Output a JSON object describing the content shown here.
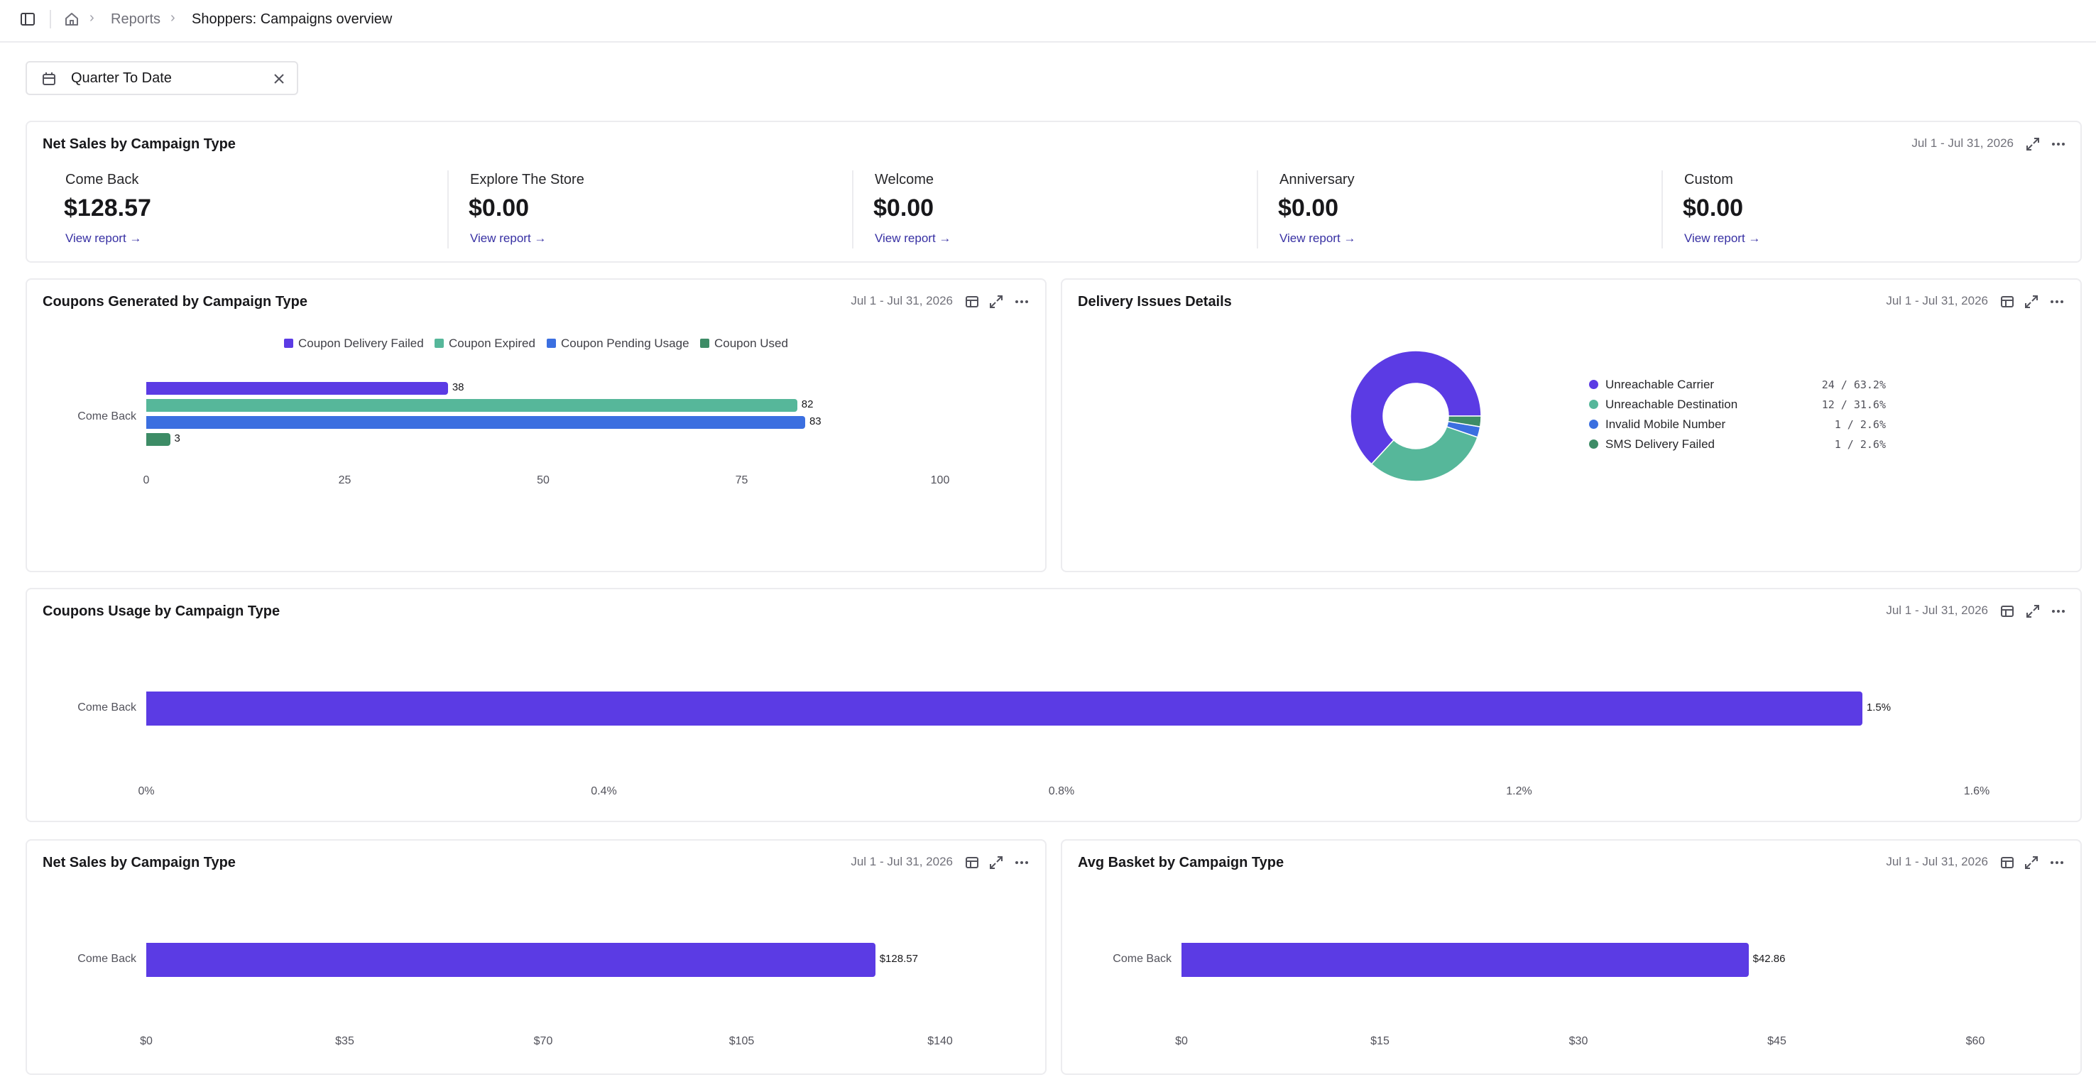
{
  "breadcrumb": {
    "section": "Reports",
    "current": "Shoppers: Campaigns overview"
  },
  "filter": {
    "value": "Quarter To Date"
  },
  "colors": {
    "purple": "#5b3be4",
    "teal": "#56b79a",
    "blue": "#3b6fe0",
    "green": "#3d8c66",
    "link": "#3730a3"
  },
  "net_sales_kpis": {
    "title": "Net Sales by Campaign Type",
    "date": "Jul 1 - Jul 31, 2026",
    "items": [
      {
        "label": "Come Back",
        "value": "$128.57",
        "link": "View report →"
      },
      {
        "label": "Explore The Store",
        "value": "$0.00",
        "link": "View report →"
      },
      {
        "label": "Welcome",
        "value": "$0.00",
        "link": "View report →"
      },
      {
        "label": "Anniversary",
        "value": "$0.00",
        "link": "View report →"
      },
      {
        "label": "Custom",
        "value": "$0.00",
        "link": "View report →"
      }
    ]
  },
  "coupons_generated": {
    "title": "Coupons Generated by Campaign Type",
    "date": "Jul 1 - Jul 31, 2026",
    "chart_data": {
      "type": "bar",
      "orientation": "horizontal",
      "categories": [
        "Come Back"
      ],
      "series": [
        {
          "name": "Coupon Delivery Failed",
          "values": [
            38
          ],
          "color": "#5b3be4"
        },
        {
          "name": "Coupon Expired",
          "values": [
            82
          ],
          "color": "#56b79a"
        },
        {
          "name": "Coupon Pending Usage",
          "values": [
            83
          ],
          "color": "#3b6fe0"
        },
        {
          "name": "Coupon Used",
          "values": [
            3
          ],
          "color": "#3d8c66"
        }
      ],
      "xlim": [
        0,
        100
      ],
      "ticks": [
        "0",
        "25",
        "50",
        "75",
        "100"
      ],
      "legend": "top"
    }
  },
  "delivery_issues": {
    "title": "Delivery Issues Details",
    "date": "Jul 1 - Jul 31, 2026",
    "chart_data": {
      "type": "pie",
      "donut": true,
      "slices": [
        {
          "name": "Unreachable Carrier",
          "count": 24,
          "percent": 63.2,
          "display": "24 / 63.2%",
          "color": "#5b3be4"
        },
        {
          "name": "Unreachable Destination",
          "count": 12,
          "percent": 31.6,
          "display": "12 / 31.6%",
          "color": "#56b79a"
        },
        {
          "name": "Invalid Mobile Number",
          "count": 1,
          "percent": 2.6,
          "display": "1 / 2.6%",
          "color": "#3b6fe0"
        },
        {
          "name": "SMS Delivery Failed",
          "count": 1,
          "percent": 2.6,
          "display": "1 / 2.6%",
          "color": "#3d8c66"
        }
      ],
      "legend": "right"
    }
  },
  "coupons_usage": {
    "title": "Coupons Usage by Campaign Type",
    "date": "Jul 1 - Jul 31, 2026",
    "chart_data": {
      "type": "bar",
      "orientation": "horizontal",
      "categories": [
        "Come Back"
      ],
      "values": [
        1.5
      ],
      "labels": [
        "1.5%"
      ],
      "xlim": [
        0,
        1.6
      ],
      "ticks": [
        "0%",
        "0.4%",
        "0.8%",
        "1.2%",
        "1.6%"
      ]
    }
  },
  "net_sales_chart": {
    "title": "Net Sales by Campaign Type",
    "date": "Jul 1 - Jul 31, 2026",
    "chart_data": {
      "type": "bar",
      "orientation": "horizontal",
      "categories": [
        "Come Back"
      ],
      "values": [
        128.57
      ],
      "labels": [
        "$128.57"
      ],
      "xlim": [
        0,
        140
      ],
      "ticks": [
        "$0",
        "$35",
        "$70",
        "$105",
        "$140"
      ]
    }
  },
  "avg_basket": {
    "title": "Avg Basket by Campaign Type",
    "date": "Jul 1 - Jul 31, 2026",
    "chart_data": {
      "type": "bar",
      "orientation": "horizontal",
      "categories": [
        "Come Back"
      ],
      "values": [
        42.86
      ],
      "labels": [
        "$42.86"
      ],
      "xlim": [
        0,
        60
      ],
      "ticks": [
        "$0",
        "$15",
        "$30",
        "$45",
        "$60"
      ]
    }
  }
}
